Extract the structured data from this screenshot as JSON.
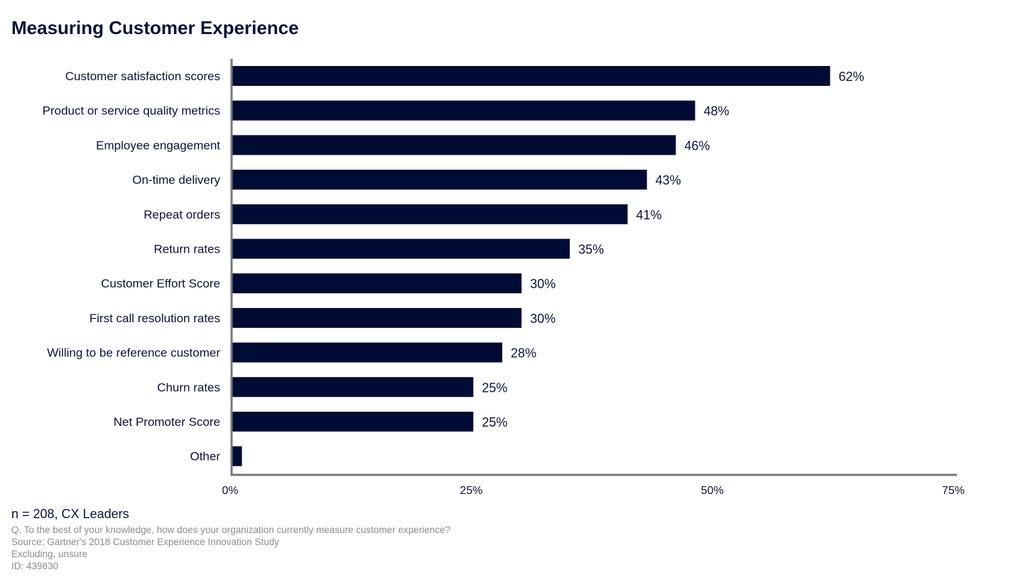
{
  "chart_data": {
    "type": "bar",
    "orientation": "horizontal",
    "title": "Measuring Customer Experience",
    "categories": [
      "Customer satisfaction scores",
      "Product or service quality metrics",
      "Employee engagement",
      "On-time delivery",
      "Repeat orders",
      "Return rates",
      "Customer Effort Score",
      "First call resolution rates",
      "Willing to be reference customer",
      "Churn rates",
      "Net Promoter Score",
      "Other"
    ],
    "values": [
      62,
      48,
      46,
      43,
      41,
      35,
      30,
      30,
      28,
      25,
      25,
      1
    ],
    "data_labels": [
      "62%",
      "48%",
      "46%",
      "43%",
      "41%",
      "35%",
      "30%",
      "30%",
      "28%",
      "25%",
      "25%",
      ""
    ],
    "xlim": [
      0,
      75
    ],
    "xticks": [
      "0%",
      "25%",
      "50%",
      "75%"
    ],
    "grid": false,
    "bar_color": "#000c33",
    "axis_color": "#777777"
  },
  "footer": {
    "sample": "n = 208, CX Leaders",
    "question": "Q. To the best of your knowledge, how does your organization currently measure customer experience?",
    "source": "Source: Gartner's 2018 Customer Experience Innovation Study",
    "excluding": "Excluding, unsure",
    "id": "ID: 439830"
  }
}
